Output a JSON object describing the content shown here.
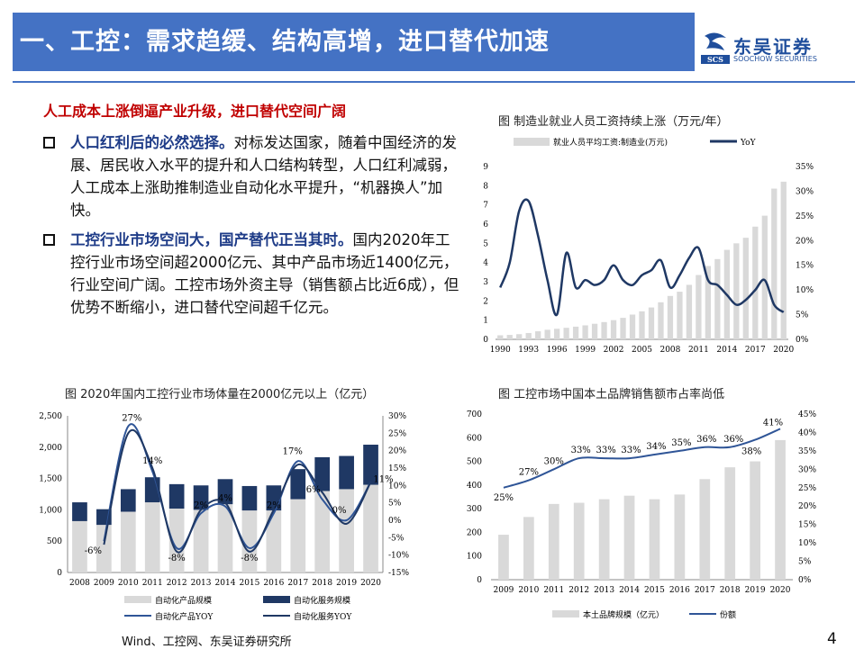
{
  "header": {
    "title": "一、工控：需求趋缓、结构高增，进口替代加速",
    "logo_cn": "东吴证券",
    "logo_en": "SOOCHOW SECURITIES",
    "logo_mark_text": "SCS"
  },
  "subtitle": "人工成本上涨倒逼产业升级，进口替代空间广阔",
  "bullets": [
    {
      "bold": "人口红利后的必然选择。",
      "text": "对标发达国家，随着中国经济的发展、居民收入水平的提升和人口结构转型，人口红利减弱，人工成本上涨助推制造业自动化水平提升，“机器换人”加快。"
    },
    {
      "bold": "工控行业市场空间大，国产替代正当其时。",
      "text": "国内2020年工控行业市场空间超2000亿元、其中产品市场近1400亿元，行业空间广阔。工控市场外资主导（销售额占比近6成），但优势不断缩小，进口替代空间超千亿元。"
    }
  ],
  "captions": {
    "chart1": "图  制造业就业人员工资持续上涨（万元/年）",
    "chart2": "图  2020年国内工控行业市场体量在2000亿元以上（亿元）",
    "chart3": "图  工控市场中国本土品牌销售额市占率尚低"
  },
  "footer": {
    "source": "Wind、工控网、东吴证券研究所",
    "page": "4"
  },
  "colors": {
    "bar_gray": "#d9d9d9",
    "navy": "#1f3864",
    "line_blue": "#2f5597",
    "title_blue": "#4472c4"
  },
  "chart_data": [
    {
      "type": "bar",
      "legend": [
        "就业人员平均工资:制造业(万元)",
        "YoY"
      ],
      "x": [
        1990,
        1991,
        1992,
        1993,
        1994,
        1995,
        1996,
        1997,
        1998,
        1999,
        2000,
        2001,
        2002,
        2003,
        2004,
        2005,
        2006,
        2007,
        2008,
        2009,
        2010,
        2011,
        2012,
        2013,
        2014,
        2015,
        2016,
        2017,
        2018,
        2019,
        2020
      ],
      "xticks": [
        "1990",
        "1993",
        "1996",
        "1999",
        "2002",
        "2005",
        "2008",
        "2011",
        "2014",
        "2017",
        "2020"
      ],
      "left_ticks": [
        "0",
        "1",
        "2",
        "3",
        "4",
        "5",
        "6",
        "7",
        "8",
        "9"
      ],
      "right_ticks": [
        "0%",
        "5%",
        "10%",
        "15%",
        "20%",
        "25%",
        "30%",
        "35%"
      ],
      "ylim": [
        0,
        9
      ],
      "y2lim": [
        0,
        35
      ],
      "wage": [
        0.21,
        0.23,
        0.27,
        0.33,
        0.42,
        0.5,
        0.55,
        0.6,
        0.66,
        0.73,
        0.81,
        0.9,
        1.0,
        1.12,
        1.29,
        1.46,
        1.66,
        1.93,
        2.26,
        2.48,
        2.84,
        3.35,
        3.82,
        4.18,
        4.66,
        5.0,
        5.29,
        5.87,
        6.44,
        7.85,
        8.21
      ],
      "yoy": [
        10.5,
        15.5,
        26,
        28,
        21,
        12,
        5,
        17.5,
        10.5,
        12,
        11,
        12,
        15,
        12,
        11,
        13,
        14,
        16,
        10.5,
        13,
        16.5,
        18.5,
        12,
        11,
        9,
        7,
        8,
        10,
        12,
        7,
        5.5
      ]
    },
    {
      "type": "bar",
      "legend": [
        "自动化产品规模",
        "自动化服务规模",
        "自动化产品YOY",
        "自动化服务YOY"
      ],
      "categories": [
        "2008",
        "2009",
        "2010",
        "2011",
        "2012",
        "2013",
        "2014",
        "2015",
        "2016",
        "2017",
        "2018",
        "2019",
        "2020"
      ],
      "left_ticks": [
        "0",
        "500",
        "1,000",
        "1,500",
        "2,000",
        "2,500"
      ],
      "right_ticks": [
        "-15%",
        "-10%",
        "-5%",
        "0%",
        "5%",
        "10%",
        "15%",
        "20%",
        "25%",
        "30%"
      ],
      "ylim": [
        0,
        2500
      ],
      "y2lim": [
        -15,
        30
      ],
      "product": [
        820,
        760,
        970,
        1120,
        1020,
        1000,
        1090,
        990,
        990,
        1170,
        1300,
        1330,
        1400
      ],
      "service": [
        300,
        250,
        360,
        400,
        390,
        390,
        400,
        390,
        400,
        480,
        540,
        530,
        640
      ],
      "product_yoy": [
        -6,
        27,
        14,
        -8,
        2,
        4,
        -8,
        2,
        17,
        6,
        0,
        11
      ],
      "service_yoy": [
        -7,
        25,
        15,
        -9,
        3,
        5,
        -9,
        3,
        16,
        8,
        -1,
        11
      ],
      "labels": [
        "-6%",
        "27%",
        "14%",
        "-8%",
        "2%",
        "4%",
        "-8%",
        "2%",
        "17%",
        "6%",
        "0%",
        "11%"
      ]
    },
    {
      "type": "bar",
      "legend": [
        "本土品牌规模（亿元）",
        "份额"
      ],
      "categories": [
        "2009",
        "2010",
        "2011",
        "2012",
        "2013",
        "2014",
        "2015",
        "2016",
        "2017",
        "2018",
        "2019",
        "2020"
      ],
      "left_ticks": [
        "0",
        "100",
        "200",
        "300",
        "400",
        "500",
        "600",
        "700"
      ],
      "right_ticks": [
        "0%",
        "5%",
        "10%",
        "15%",
        "20%",
        "25%",
        "30%",
        "35%",
        "40%",
        "45%"
      ],
      "ylim": [
        0,
        700
      ],
      "y2lim": [
        0,
        45
      ],
      "values": [
        190,
        265,
        320,
        325,
        340,
        355,
        340,
        360,
        425,
        475,
        500,
        590
      ],
      "share": [
        25,
        27,
        30,
        33,
        33,
        33,
        34,
        35,
        36,
        36,
        38,
        41
      ],
      "labels": [
        "25%",
        "27%",
        "30%",
        "33%",
        "33%",
        "33%",
        "34%",
        "35%",
        "36%",
        "36%",
        "38%",
        "41%"
      ]
    }
  ]
}
